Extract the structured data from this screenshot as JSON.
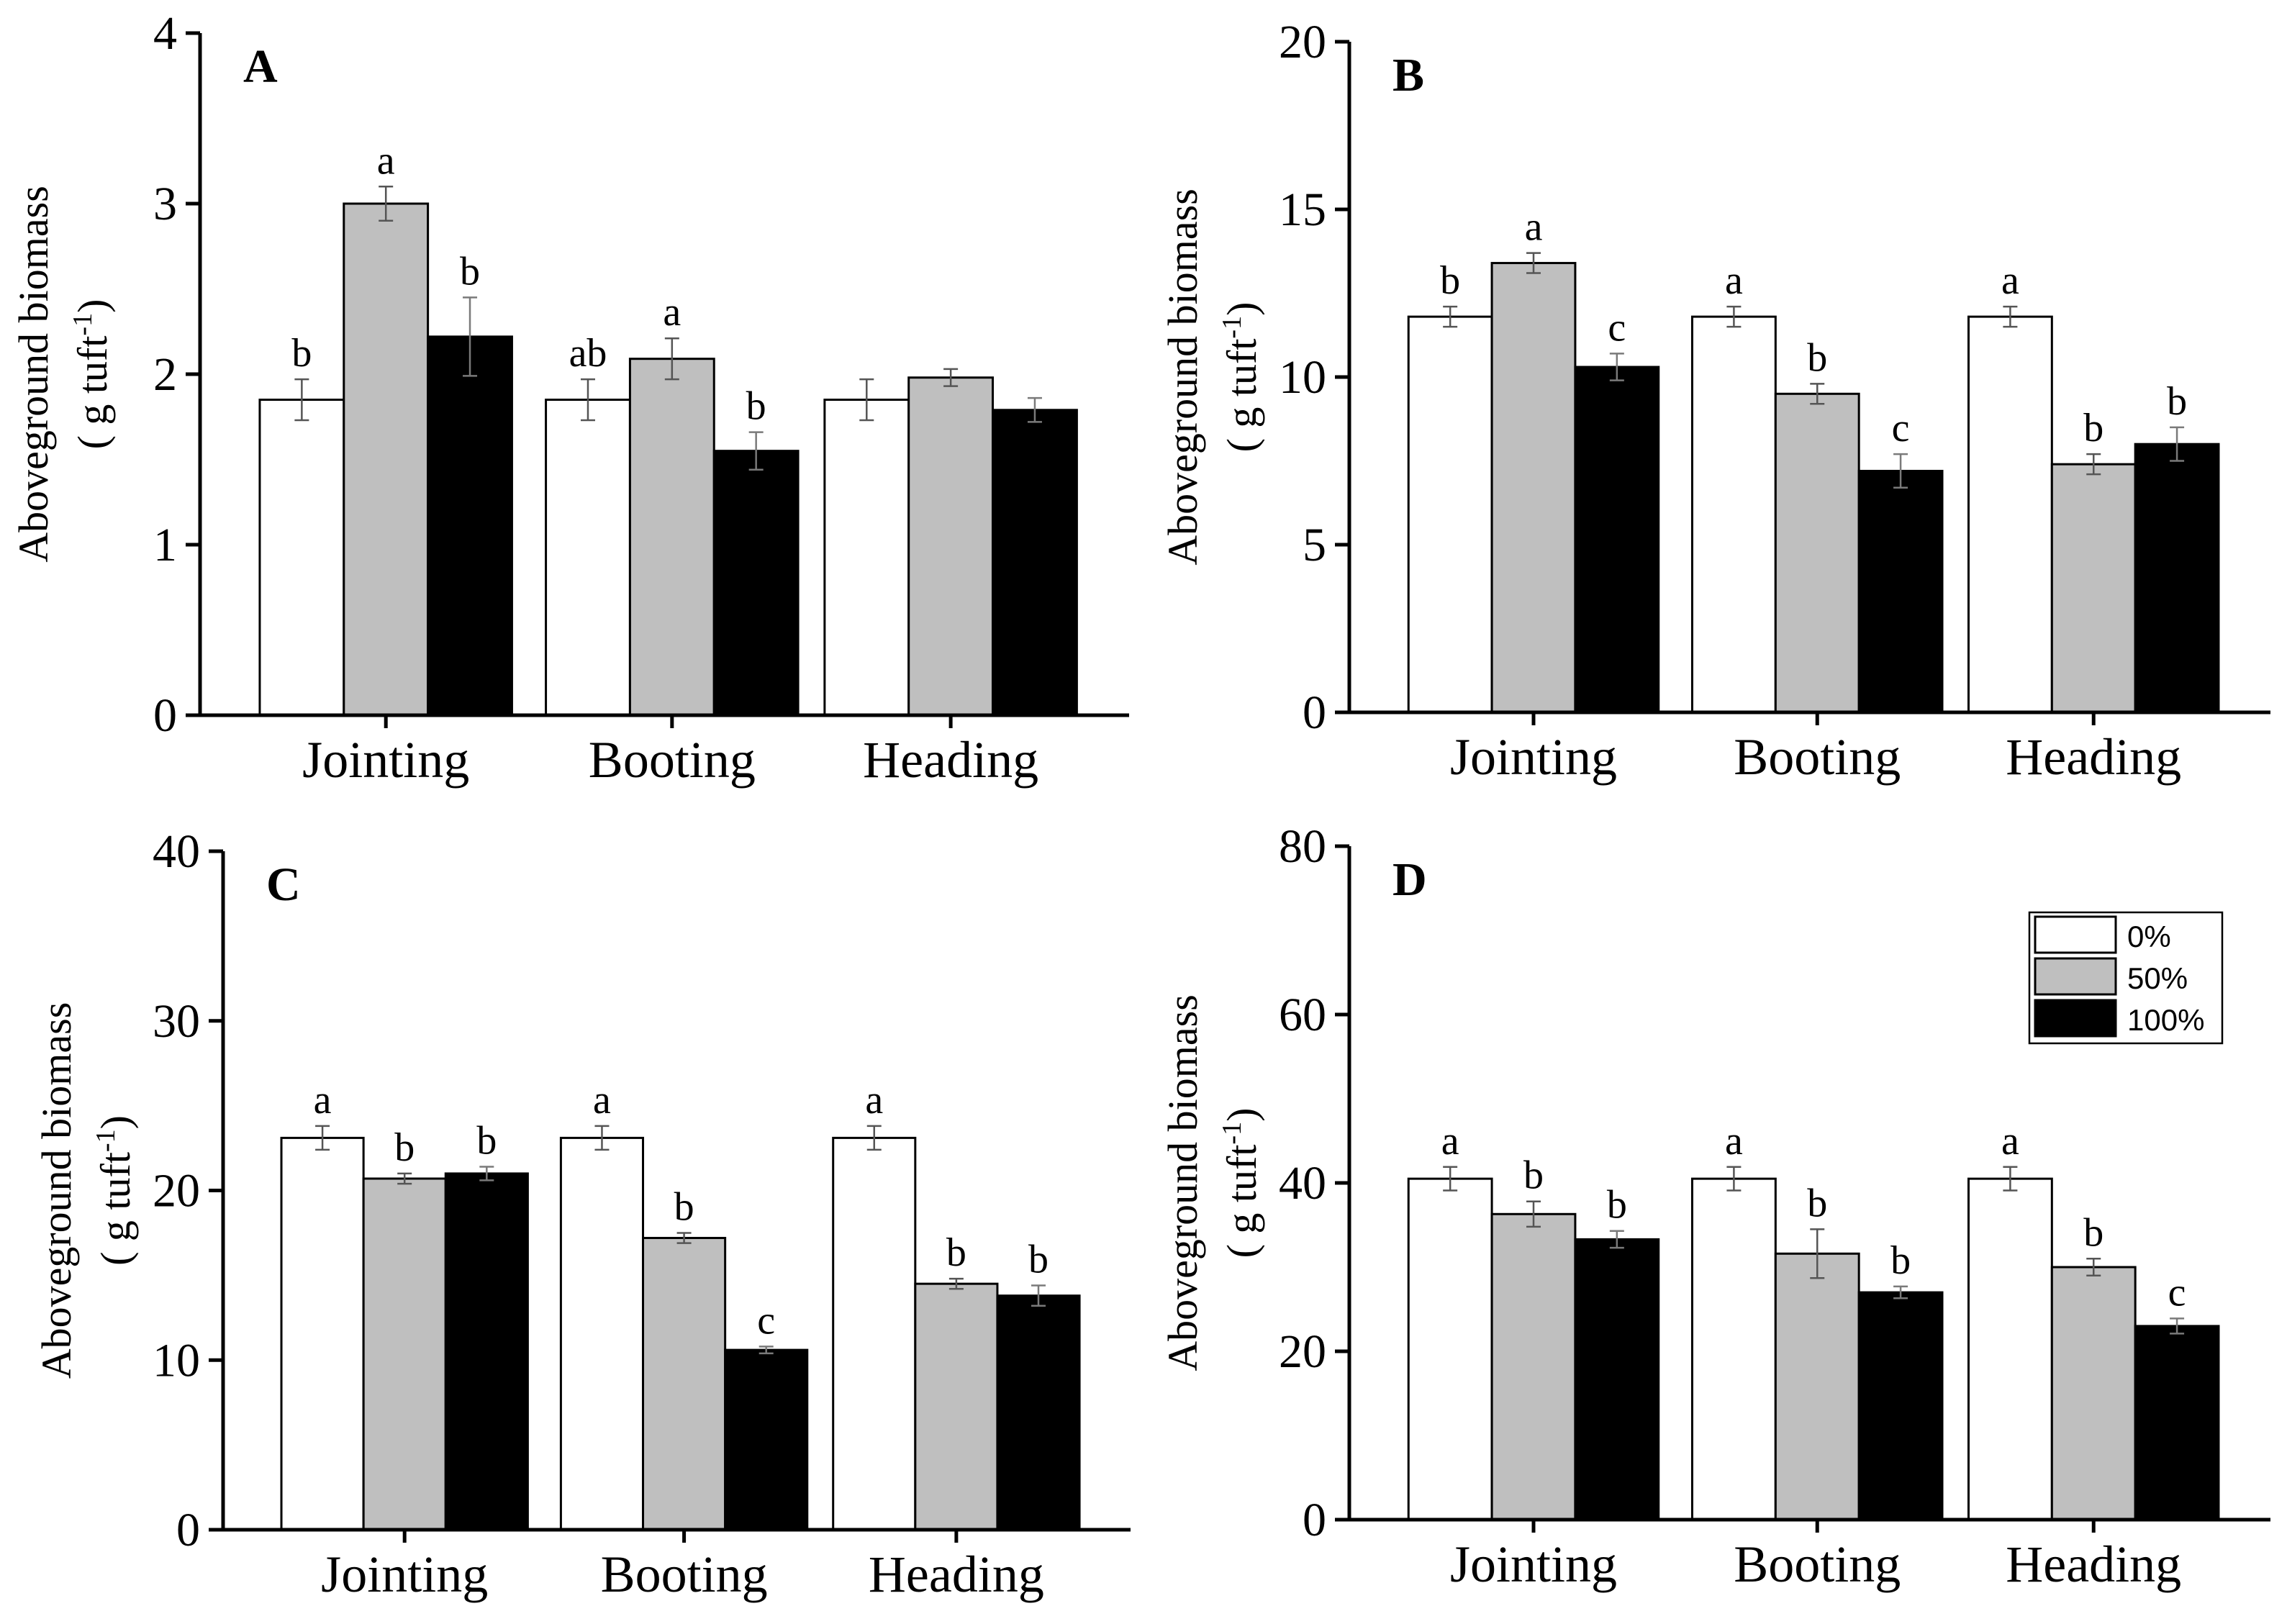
{
  "colors": {
    "s0": "#ffffff",
    "s50": "#bfbfbf",
    "s100": "#000000",
    "axis": "#000000",
    "errbar": "#555555"
  },
  "legend": [
    {
      "label": "0%",
      "color": "#ffffff"
    },
    {
      "label": "50%",
      "color": "#bfbfbf"
    },
    {
      "label": "100%",
      "color": "#000000"
    }
  ],
  "chart_data": [
    {
      "type": "bar",
      "panel_label": "A",
      "ylabel_line1": "Aboveground biomass",
      "ylabel_line2_prefix": "( g tuft",
      "ylabel_line2_sup": "-1",
      "ylabel_line2_suffix": ")",
      "ylim": [
        0,
        4
      ],
      "yticks": [
        0,
        1,
        2,
        3,
        4
      ],
      "categories": [
        "Jointing",
        "Booting",
        "Heading"
      ],
      "series": [
        {
          "name": "0%",
          "values": [
            1.85,
            1.85,
            1.85
          ],
          "errors": [
            0.12,
            0.12,
            0.12
          ],
          "letters": [
            "b",
            "ab",
            ""
          ]
        },
        {
          "name": "50%",
          "values": [
            3.0,
            2.09,
            1.98
          ],
          "errors": [
            0.1,
            0.12,
            0.05
          ],
          "letters": [
            "a",
            "a",
            ""
          ]
        },
        {
          "name": "100%",
          "values": [
            2.22,
            1.55,
            1.79
          ],
          "errors": [
            0.23,
            0.11,
            0.07
          ],
          "letters": [
            "b",
            "b",
            ""
          ]
        }
      ]
    },
    {
      "type": "bar",
      "panel_label": "B",
      "ylabel_line1": "Aboveground biomass",
      "ylabel_line2_prefix": "( g tuft",
      "ylabel_line2_sup": "-1",
      "ylabel_line2_suffix": ")",
      "ylim": [
        0,
        20
      ],
      "yticks": [
        0,
        5,
        10,
        15,
        20
      ],
      "categories": [
        "Jointing",
        "Booting",
        "Heading"
      ],
      "series": [
        {
          "name": "0%",
          "values": [
            11.8,
            11.8,
            11.8
          ],
          "errors": [
            0.3,
            0.3,
            0.3
          ],
          "letters": [
            "b",
            "a",
            "a"
          ]
        },
        {
          "name": "50%",
          "values": [
            13.4,
            9.5,
            7.4
          ],
          "errors": [
            0.3,
            0.3,
            0.3
          ],
          "letters": [
            "a",
            "b",
            "b"
          ]
        },
        {
          "name": "100%",
          "values": [
            10.3,
            7.2,
            8.0
          ],
          "errors": [
            0.4,
            0.5,
            0.5
          ],
          "letters": [
            "c",
            "c",
            "b"
          ]
        }
      ]
    },
    {
      "type": "bar",
      "panel_label": "C",
      "ylabel_line1": "Aboveground biomass",
      "ylabel_line2_prefix": "( g tuft",
      "ylabel_line2_sup": "-1",
      "ylabel_line2_suffix": ")",
      "ylim": [
        0,
        40
      ],
      "yticks": [
        0,
        10,
        20,
        30,
        40
      ],
      "categories": [
        "Jointing",
        "Booting",
        "Heading"
      ],
      "series": [
        {
          "name": "0%",
          "values": [
            23.1,
            23.1,
            23.1
          ],
          "errors": [
            0.7,
            0.7,
            0.7
          ],
          "letters": [
            "a",
            "a",
            "a"
          ]
        },
        {
          "name": "50%",
          "values": [
            20.7,
            17.2,
            14.5
          ],
          "errors": [
            0.3,
            0.3,
            0.3
          ],
          "letters": [
            "b",
            "b",
            "b"
          ]
        },
        {
          "name": "100%",
          "values": [
            21.0,
            10.6,
            13.8
          ],
          "errors": [
            0.4,
            0.2,
            0.6
          ],
          "letters": [
            "b",
            "c",
            "b"
          ]
        }
      ]
    },
    {
      "type": "bar",
      "panel_label": "D",
      "ylabel_line1": "Aboveground biomass",
      "ylabel_line2_prefix": "( g tuft",
      "ylabel_line2_sup": "-1",
      "ylabel_line2_suffix": ")",
      "ylim": [
        0,
        80
      ],
      "yticks": [
        0,
        20,
        40,
        60,
        80
      ],
      "categories": [
        "Jointing",
        "Booting",
        "Heading"
      ],
      "series": [
        {
          "name": "0%",
          "values": [
            40.5,
            40.5,
            40.5
          ],
          "errors": [
            1.4,
            1.4,
            1.4
          ],
          "letters": [
            "a",
            "a",
            "a"
          ]
        },
        {
          "name": "50%",
          "values": [
            36.3,
            31.6,
            30.0
          ],
          "errors": [
            1.5,
            2.9,
            1.0
          ],
          "letters": [
            "b",
            "b",
            "b"
          ]
        },
        {
          "name": "100%",
          "values": [
            33.3,
            27.0,
            23.0
          ],
          "errors": [
            1.0,
            0.7,
            0.9
          ],
          "letters": [
            "b",
            "b",
            "c"
          ]
        }
      ],
      "has_legend": true
    }
  ]
}
